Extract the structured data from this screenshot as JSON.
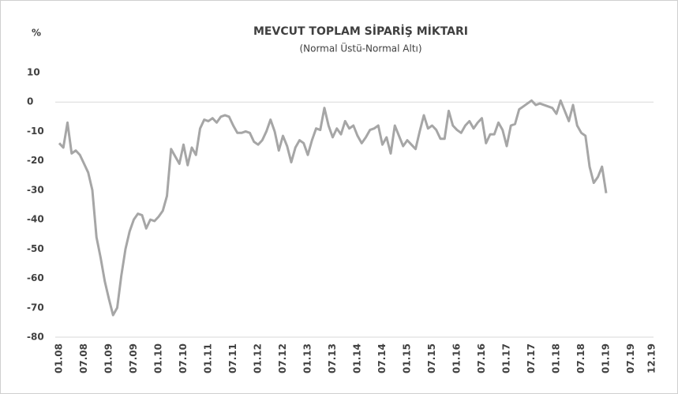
{
  "chart_data": {
    "type": "line",
    "title": "MEVCUT TOPLAM SİPARİŞ MİKTARI",
    "subtitle": "(Normal Üstü-Normal Altı)",
    "y_label": "%",
    "categories": [
      "01.08",
      null,
      null,
      null,
      null,
      null,
      "07.08",
      null,
      null,
      null,
      null,
      null,
      "01.09",
      null,
      null,
      null,
      null,
      null,
      "07.09",
      null,
      null,
      null,
      null,
      null,
      "01.10",
      null,
      null,
      null,
      null,
      null,
      "07.10",
      null,
      null,
      null,
      null,
      null,
      "01.11",
      null,
      null,
      null,
      null,
      null,
      "07.11",
      null,
      null,
      null,
      null,
      null,
      "01.12",
      null,
      null,
      null,
      null,
      null,
      "07.12",
      null,
      null,
      null,
      null,
      null,
      "01.13",
      null,
      null,
      null,
      null,
      null,
      "07.13",
      null,
      null,
      null,
      null,
      null,
      "01.14",
      null,
      null,
      null,
      null,
      null,
      "07.14",
      null,
      null,
      null,
      null,
      null,
      "01.15",
      null,
      null,
      null,
      null,
      null,
      "07.15",
      null,
      null,
      null,
      null,
      null,
      "01.16",
      null,
      null,
      null,
      null,
      null,
      "07.16",
      null,
      null,
      null,
      null,
      null,
      "01.17",
      null,
      null,
      null,
      null,
      null,
      "07.17",
      null,
      null,
      null,
      null,
      null,
      "01.18",
      null,
      null,
      null,
      null,
      null,
      "07.18",
      null,
      null,
      null,
      null,
      null,
      "01.19",
      null,
      null,
      null,
      null,
      null,
      "07.19",
      null,
      null,
      null,
      null,
      "12.19"
    ],
    "series": [
      {
        "name": "Mevcut Toplam Sipariş Miktarı",
        "color": "#a6a6a6",
        "values": [
          -14,
          -15.5,
          -7,
          -17.5,
          -16.5,
          -18,
          -21,
          -24,
          -30,
          -46,
          -53,
          -61,
          -67,
          -72.5,
          -70,
          -59,
          -50,
          -44,
          -40,
          -38,
          -38.5,
          -43,
          -40,
          -40.5,
          -39,
          -37,
          -32,
          -16,
          -18.5,
          -21,
          -14.5,
          -21.5,
          -15.5,
          -18,
          -9,
          -6,
          -6.5,
          -5.5,
          -7,
          -5,
          -4.5,
          -5,
          -8,
          -10.5,
          -10.5,
          -10,
          -10.5,
          -13.5,
          -14.5,
          -13,
          -10,
          -6,
          -10,
          -16.5,
          -11.5,
          -15,
          -20.5,
          -15.5,
          -13,
          -14,
          -18,
          -13,
          -9,
          -9.5,
          -2,
          -8,
          -12,
          -9,
          -11,
          -6.5,
          -9,
          -8,
          -11.5,
          -14,
          -12,
          -9.5,
          -9,
          -8,
          -14.5,
          -12,
          -17.5,
          -8,
          -11.5,
          -15,
          -13,
          -14.5,
          -16,
          -10,
          -4.5,
          -9,
          -8,
          -9.5,
          -12.5,
          -12.5,
          -3,
          -8,
          -9.5,
          -10.5,
          -8,
          -6.5,
          -9,
          -7,
          -5.5,
          -14,
          -11,
          -11,
          -7,
          -9.5,
          -15,
          -8,
          -7.5,
          -2.5,
          -1.5,
          -0.5,
          0.5,
          -1,
          -0.5,
          -1,
          -1.5,
          -2,
          -4,
          0.5,
          -3,
          -6.5,
          -1,
          -8,
          -10.5,
          -11.5,
          -22,
          -27.5,
          -25.5,
          -22,
          -31,
          null,
          null,
          null,
          null,
          null,
          null,
          null,
          null,
          null,
          null,
          null
        ]
      }
    ],
    "ylim": [
      -80,
      10
    ],
    "yticks": [
      -80,
      -70,
      -60,
      -50,
      -40,
      -30,
      -20,
      -10,
      0,
      10
    ],
    "grid": false
  }
}
